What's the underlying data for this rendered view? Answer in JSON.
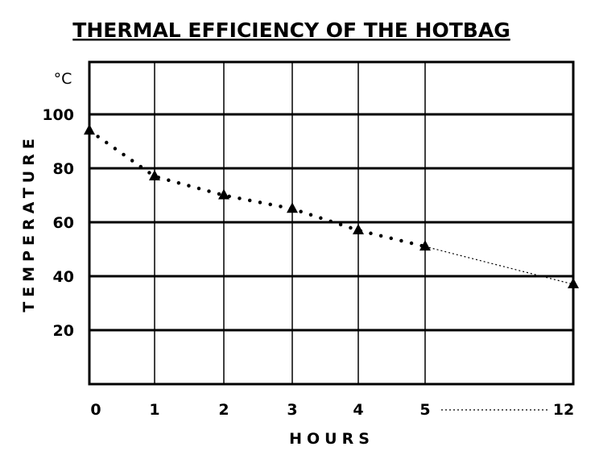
{
  "chart_data": {
    "type": "line",
    "title": "THERMAL EFFICIENCY OF THE HOTBAG",
    "xlabel": "HOURS",
    "ylabel": "TEMPERATURE",
    "yunit": "°C",
    "ylim": [
      0,
      100
    ],
    "yticks": [
      20,
      40,
      60,
      80,
      100
    ],
    "x_tick_labels": [
      "0",
      "1",
      "2",
      "3",
      "4",
      "5",
      "12"
    ],
    "grid": true,
    "x_axis_break": "dotted gap between 5 and 12",
    "series": [
      {
        "x": [
          0,
          1,
          2,
          3,
          4,
          5,
          12
        ],
        "y": [
          94,
          77,
          70,
          65,
          57,
          51,
          37
        ],
        "marker": "triangle",
        "line_style": "dotted"
      }
    ]
  }
}
